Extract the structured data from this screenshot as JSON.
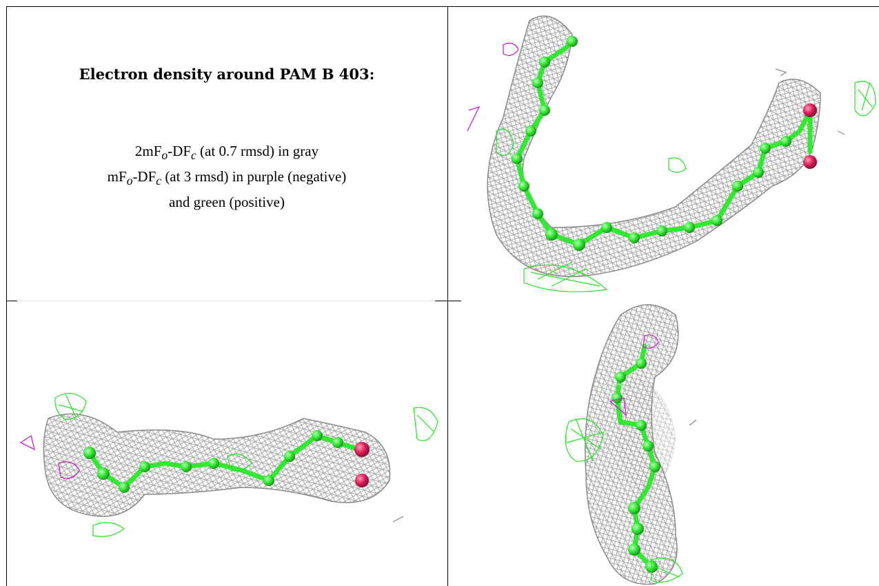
{
  "caption": {
    "title": "Electron density around PAM B 403:",
    "line1_prefix": "2mF",
    "line1_sub1": "o",
    "line1_mid": "-DF",
    "line1_sub2": "c",
    "line1_suffix": " (at 0.7 rmsd) in gray",
    "line2_prefix": "mF",
    "line2_sub1": "o",
    "line2_mid": "-DF",
    "line2_sub2": "c",
    "line2_suffix": " (at 3 rmsd) in purple (negative)",
    "line3": "and green (positive)"
  },
  "colors": {
    "mesh_gray": "#9a9a9a",
    "atom_green": "#33e833",
    "atom_red": "#e0205a",
    "positive_green": "#22e622",
    "negative_purple": "#cc22cc"
  },
  "panels": [
    "top-right-view",
    "bottom-left-view",
    "bottom-right-view"
  ]
}
